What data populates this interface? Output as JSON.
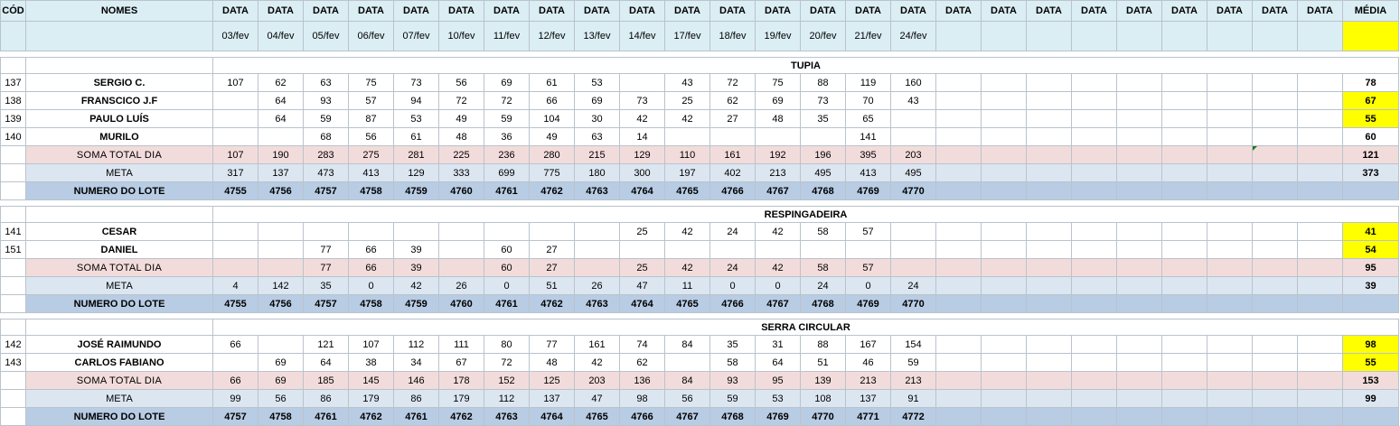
{
  "header": {
    "cod_label": "CÓD",
    "names_label": "NOMES",
    "date_label": "DATA",
    "media_label": "MÉDIA",
    "date_column_count": 25,
    "dates": [
      "03/fev",
      "04/fev",
      "05/fev",
      "06/fev",
      "07/fev",
      "10/fev",
      "11/fev",
      "12/fev",
      "13/fev",
      "14/fev",
      "17/fev",
      "18/fev",
      "19/fev",
      "20/fev",
      "21/fev",
      "24/fev",
      "",
      "",
      "",
      "",
      "",
      "",
      "",
      "",
      ""
    ]
  },
  "sections": [
    {
      "title": "TUPIA",
      "people": [
        {
          "cod": "137",
          "name": "SERGIO C.",
          "values": [
            "107",
            "62",
            "63",
            "75",
            "73",
            "56",
            "69",
            "61",
            "53",
            "",
            "43",
            "72",
            "75",
            "88",
            "119",
            "160"
          ],
          "media": "78",
          "highlight": false
        },
        {
          "cod": "138",
          "name": "FRANSCICO J.F",
          "values": [
            "",
            "64",
            "93",
            "57",
            "94",
            "72",
            "72",
            "66",
            "69",
            "73",
            "25",
            "62",
            "69",
            "73",
            "70",
            "43"
          ],
          "media": "67",
          "highlight": true
        },
        {
          "cod": "139",
          "name": "PAULO LUÍS",
          "values": [
            "",
            "64",
            "59",
            "87",
            "53",
            "49",
            "59",
            "104",
            "30",
            "42",
            "42",
            "27",
            "48",
            "35",
            "65",
            ""
          ],
          "media": "55",
          "highlight": true
        },
        {
          "cod": "140",
          "name": "MURILO",
          "values": [
            "",
            "",
            "68",
            "56",
            "61",
            "48",
            "36",
            "49",
            "63",
            "14",
            "",
            "",
            "",
            "",
            "141",
            ""
          ],
          "media": "60",
          "highlight": false
        }
      ],
      "soma": {
        "label": "SOMA TOTAL DIA",
        "values": [
          "107",
          "190",
          "283",
          "275",
          "281",
          "225",
          "236",
          "280",
          "215",
          "129",
          "110",
          "161",
          "192",
          "196",
          "395",
          "203"
        ],
        "media": "121"
      },
      "meta": {
        "label": "META",
        "values": [
          "317",
          "137",
          "473",
          "413",
          "129",
          "333",
          "699",
          "775",
          "180",
          "300",
          "197",
          "402",
          "213",
          "495",
          "413",
          "495"
        ],
        "media": "373"
      },
      "lote": {
        "label": "NUMERO DO LOTE",
        "values": [
          "4755",
          "4756",
          "4757",
          "4758",
          "4759",
          "4760",
          "4761",
          "4762",
          "4763",
          "4764",
          "4765",
          "4766",
          "4767",
          "4768",
          "4769",
          "4770"
        ],
        "media": ""
      }
    },
    {
      "title": "RESPINGADEIRA",
      "people": [
        {
          "cod": "141",
          "name": "CESAR",
          "values": [
            "",
            "",
            "",
            "",
            "",
            "",
            "",
            "",
            "",
            "25",
            "42",
            "24",
            "42",
            "58",
            "57",
            ""
          ],
          "media": "41",
          "highlight": true
        },
        {
          "cod": "151",
          "name": "DANIEL",
          "values": [
            "",
            "",
            "77",
            "66",
            "39",
            "",
            "60",
            "27",
            "",
            "",
            "",
            "",
            "",
            "",
            "",
            ""
          ],
          "media": "54",
          "highlight": true
        }
      ],
      "soma": {
        "label": "SOMA TOTAL DIA",
        "values": [
          "",
          "",
          "77",
          "66",
          "39",
          "",
          "60",
          "27",
          "",
          "25",
          "42",
          "24",
          "42",
          "58",
          "57",
          ""
        ],
        "media": "95"
      },
      "meta": {
        "label": "META",
        "values": [
          "4",
          "142",
          "35",
          "0",
          "42",
          "26",
          "0",
          "51",
          "26",
          "47",
          "11",
          "0",
          "0",
          "24",
          "0",
          "24"
        ],
        "media": "39"
      },
      "lote": {
        "label": "NUMERO DO LOTE",
        "values": [
          "4755",
          "4756",
          "4757",
          "4758",
          "4759",
          "4760",
          "4761",
          "4762",
          "4763",
          "4764",
          "4765",
          "4766",
          "4767",
          "4768",
          "4769",
          "4770"
        ],
        "media": ""
      }
    },
    {
      "title": "SERRA CIRCULAR",
      "people": [
        {
          "cod": "142",
          "name": "JOSÉ RAIMUNDO",
          "values": [
            "66",
            "",
            "121",
            "107",
            "112",
            "111",
            "80",
            "77",
            "161",
            "74",
            "84",
            "35",
            "31",
            "88",
            "167",
            "154"
          ],
          "media": "98",
          "highlight": true
        },
        {
          "cod": "143",
          "name": "CARLOS FABIANO",
          "values": [
            "",
            "69",
            "64",
            "38",
            "34",
            "67",
            "72",
            "48",
            "42",
            "62",
            "",
            "58",
            "64",
            "51",
            "46",
            "59"
          ],
          "media": "55",
          "highlight": true
        }
      ],
      "soma": {
        "label": "SOMA TOTAL DIA",
        "values": [
          "66",
          "69",
          "185",
          "145",
          "146",
          "178",
          "152",
          "125",
          "203",
          "136",
          "84",
          "93",
          "95",
          "139",
          "213",
          "213"
        ],
        "media": "153"
      },
      "meta": {
        "label": "META",
        "values": [
          "99",
          "56",
          "86",
          "179",
          "86",
          "179",
          "112",
          "137",
          "47",
          "98",
          "56",
          "59",
          "53",
          "108",
          "137",
          "91"
        ],
        "media": "99"
      },
      "lote": {
        "label": "NUMERO DO LOTE",
        "values": [
          "4757",
          "4758",
          "4761",
          "4762",
          "4761",
          "4762",
          "4763",
          "4764",
          "4765",
          "4766",
          "4767",
          "4768",
          "4769",
          "4770",
          "4771",
          "4772"
        ],
        "media": ""
      }
    }
  ],
  "colors": {
    "header_bg": "#dbeef4",
    "highlight": "#ffff00",
    "soma_bg": "#f2dcdb",
    "meta_bg": "#dce6f1",
    "lote_bg": "#b8cce4"
  }
}
